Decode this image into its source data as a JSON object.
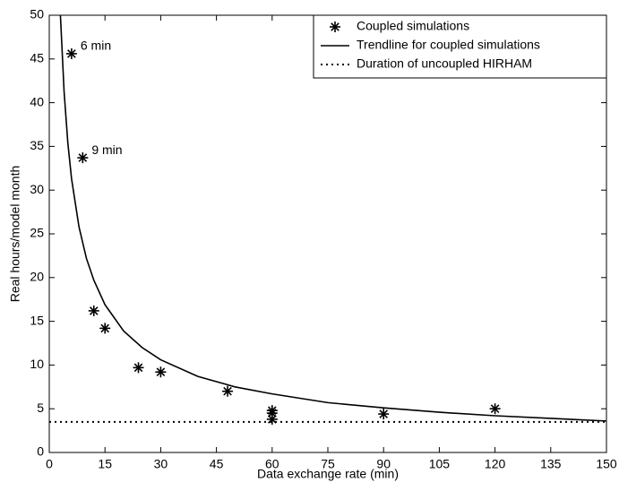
{
  "chart_data": {
    "type": "scatter",
    "xlabel": "Data exchange rate (min)",
    "ylabel": "Real hours/model month",
    "xlim": [
      0,
      150
    ],
    "ylim": [
      0,
      50
    ],
    "xticks": [
      0,
      15,
      30,
      45,
      60,
      75,
      90,
      105,
      120,
      135,
      150
    ],
    "yticks": [
      0,
      5,
      10,
      15,
      20,
      25,
      30,
      35,
      40,
      45,
      50
    ],
    "legend": "upper right",
    "series": [
      {
        "name": "Coupled simulations",
        "type": "scatter",
        "color": "#000000",
        "x": [
          6,
          9,
          12,
          15,
          24,
          30,
          48,
          60,
          60,
          60,
          90,
          120
        ],
        "values": [
          45.6,
          33.7,
          16.2,
          14.2,
          9.7,
          9.2,
          7.0,
          4.8,
          4.5,
          3.8,
          4.4,
          5.0
        ]
      },
      {
        "name": "Trendline for coupled simulations",
        "type": "line",
        "color": "#000000",
        "dash": "solid",
        "x": [
          3,
          4,
          5,
          6,
          8,
          10,
          12,
          15,
          20,
          25,
          30,
          40,
          50,
          60,
          75,
          90,
          105,
          120,
          135,
          150
        ],
        "values": [
          50.0,
          41.2,
          35.4,
          31.3,
          25.8,
          22.2,
          19.7,
          16.9,
          13.9,
          12.0,
          10.6,
          8.7,
          7.5,
          6.7,
          5.7,
          5.1,
          4.6,
          4.2,
          3.9,
          3.6
        ]
      },
      {
        "name": "Duration of uncoupled HIRHAM",
        "type": "line",
        "color": "#000000",
        "dash": "dotted",
        "x": [
          0,
          150
        ],
        "values": [
          3.5,
          3.5
        ]
      }
    ],
    "annotations": [
      {
        "text": "6 min",
        "color": "#1a1acc"
      },
      {
        "text": "9 min",
        "color": "#1a1acc"
      }
    ]
  }
}
